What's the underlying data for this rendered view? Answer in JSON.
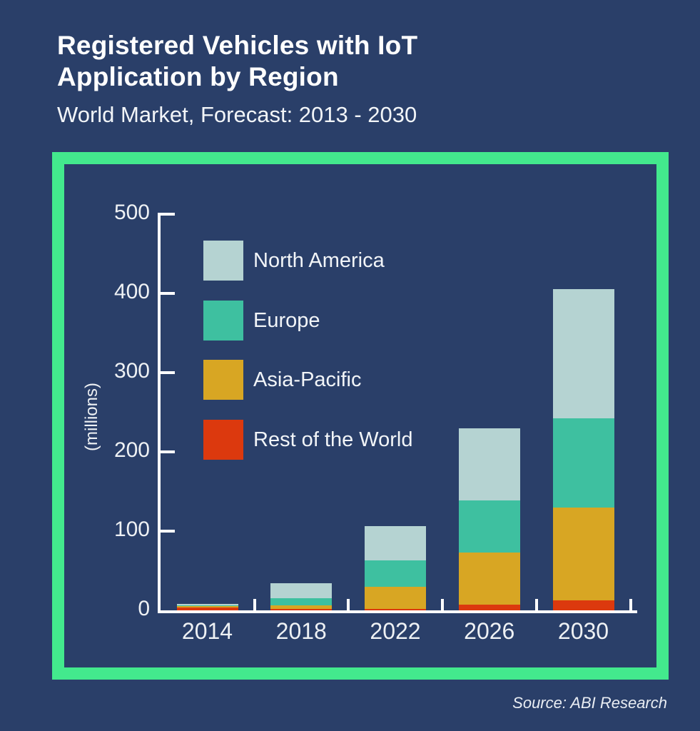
{
  "header": {
    "title_line1": "Registered Vehicles with IoT",
    "title_line2": "Application by Region",
    "subtitle": "World Market, Forecast: 2013 - 2030"
  },
  "footer": {
    "source": "Source: ABI Research"
  },
  "colors": {
    "background": "#2a3f69",
    "frame_green": "#43e98d",
    "axis_white": "#ffffff",
    "north_america": "#b5d3d2",
    "europe": "#3ec0a0",
    "asia_pacific": "#d8a623",
    "rest_of_world": "#dc390e"
  },
  "chart_data": {
    "type": "bar",
    "stacked": true,
    "title": "Registered Vehicles with IoT Application by Region",
    "subtitle": "World Market, Forecast: 2013 - 2030",
    "categories": [
      "2014",
      "2018",
      "2022",
      "2026",
      "2030"
    ],
    "series": [
      {
        "name": "North America",
        "color": "#b5d3d2",
        "values": [
          2,
          19,
          43,
          91,
          163
        ]
      },
      {
        "name": "Europe",
        "color": "#3ec0a0",
        "values": [
          1,
          9,
          33,
          66,
          112
        ]
      },
      {
        "name": "Asia-Pacific",
        "color": "#d8a623",
        "values": [
          1,
          4,
          28,
          66,
          117
        ]
      },
      {
        "name": "Rest of the World",
        "color": "#dc390e",
        "values": [
          4,
          2,
          2,
          7,
          13
        ]
      }
    ],
    "stack_order_bottom_to_top": [
      "Rest of the World",
      "Asia-Pacific",
      "Europe",
      "North America"
    ],
    "totals": [
      8,
      34,
      106,
      230,
      405
    ],
    "xlabel": "",
    "ylabel": "(millions)",
    "yticks": [
      0,
      100,
      200,
      300,
      400,
      500
    ],
    "ylim": [
      0,
      500
    ],
    "grid": false,
    "legend_position": "upper-left-inside",
    "source": "Source: ABI Research"
  }
}
